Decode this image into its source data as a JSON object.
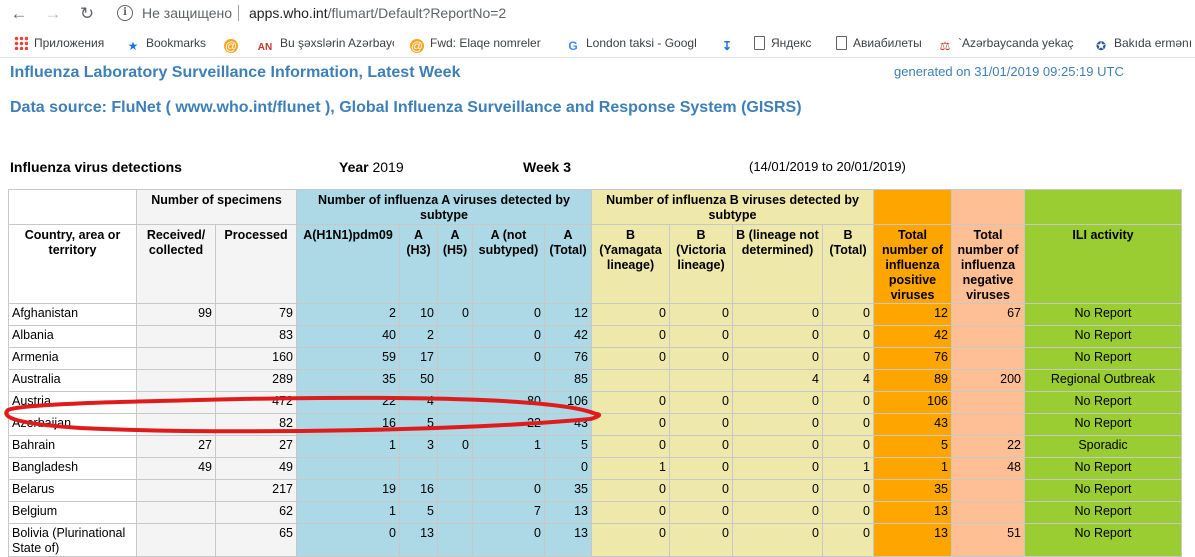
{
  "browser": {
    "security_label": "Не защищено",
    "url_host": "apps.who.int",
    "url_path": "/flumart/Default?ReportNo=2",
    "bookmarks": [
      {
        "label": "Приложения",
        "icon": "apps-grid-icon"
      },
      {
        "label": "Bookmarks",
        "icon": "star-icon"
      },
      {
        "label": "",
        "icon": "mail-at-icon"
      },
      {
        "label": "Bu şəxslərin Azərbayc",
        "icon": "an-logo-icon"
      },
      {
        "label": "Fwd: Elaqe nomreler",
        "icon": "mail-at-icon"
      },
      {
        "label": "London taksi - Googl",
        "icon": "google-icon"
      },
      {
        "label": "",
        "icon": "download-icon"
      },
      {
        "label": "Яндекс",
        "icon": "page-icon"
      },
      {
        "label": "Авиабилеты",
        "icon": "page-icon"
      },
      {
        "label": "`Azərbaycanda yekaç",
        "icon": "scales-icon"
      },
      {
        "label": "Bakıda ermənı",
        "icon": "site-icon"
      }
    ]
  },
  "report": {
    "title": "Influenza Laboratory Surveillance Information, Latest Week",
    "generated": "generated on 31/01/2019 09:25:19 UTC",
    "source": "Data source: FluNet ( www.who.int/flunet ), Global Influenza Surveillance and Response System (GISRS)",
    "section_title": "Influenza virus detections",
    "year_label": "Year",
    "year_value": "2019",
    "week_label": "Week",
    "week_value": "3",
    "date_range": "(14/01/2019 to 20/01/2019)"
  },
  "table": {
    "group_headers": {
      "specimens": "Number of specimens",
      "a_viruses": "Number of influenza A viruses detected by subtype",
      "b_viruses": "Number of influenza B viruses detected by subtype"
    },
    "columns": {
      "country": "Country, area or territory",
      "received": "Received/ collected",
      "processed": "Processed",
      "h1n1": "A(H1N1)pdm09",
      "h3": "A (H3)",
      "h5": "A (H5)",
      "a_not": "A (not subtyped)",
      "a_total": "A (Total)",
      "b_yam": "B (Yamagata lineage)",
      "b_vic": "B (Victoria lineage)",
      "b_not": "B (lineage not determined)",
      "b_total": "B (Total)",
      "total_pos": "Total number of influenza positive viruses",
      "total_neg": "Total number of influenza negative viruses",
      "ili": "ILI activity"
    },
    "rows": [
      {
        "country": "Afghanistan",
        "received": "99",
        "processed": "79",
        "h1n1": "2",
        "h3": "10",
        "h5": "0",
        "a_not": "0",
        "a_total": "12",
        "b_yam": "0",
        "b_vic": "0",
        "b_not": "0",
        "b_total": "0",
        "total_pos": "12",
        "total_neg": "67",
        "ili": "No Report"
      },
      {
        "country": "Albania",
        "received": "",
        "processed": "83",
        "h1n1": "40",
        "h3": "2",
        "h5": "",
        "a_not": "0",
        "a_total": "42",
        "b_yam": "0",
        "b_vic": "0",
        "b_not": "0",
        "b_total": "0",
        "total_pos": "42",
        "total_neg": "",
        "ili": "No Report"
      },
      {
        "country": "Armenia",
        "received": "",
        "processed": "160",
        "h1n1": "59",
        "h3": "17",
        "h5": "",
        "a_not": "0",
        "a_total": "76",
        "b_yam": "0",
        "b_vic": "0",
        "b_not": "0",
        "b_total": "0",
        "total_pos": "76",
        "total_neg": "",
        "ili": "No Report"
      },
      {
        "country": "Australia",
        "received": "",
        "processed": "289",
        "h1n1": "35",
        "h3": "50",
        "h5": "",
        "a_not": "",
        "a_total": "85",
        "b_yam": "",
        "b_vic": "",
        "b_not": "4",
        "b_total": "4",
        "total_pos": "89",
        "total_neg": "200",
        "ili": "Regional Outbreak"
      },
      {
        "country": "Austria",
        "received": "",
        "processed": "472",
        "h1n1": "22",
        "h3": "4",
        "h5": "",
        "a_not": "80",
        "a_total": "106",
        "b_yam": "0",
        "b_vic": "0",
        "b_not": "0",
        "b_total": "0",
        "total_pos": "106",
        "total_neg": "",
        "ili": "No Report"
      },
      {
        "country": "Azerbaijan",
        "received": "",
        "processed": "82",
        "h1n1": "16",
        "h3": "5",
        "h5": "",
        "a_not": "22",
        "a_total": "43",
        "b_yam": "0",
        "b_vic": "0",
        "b_not": "0",
        "b_total": "0",
        "total_pos": "43",
        "total_neg": "",
        "ili": "No Report"
      },
      {
        "country": "Bahrain",
        "received": "27",
        "processed": "27",
        "h1n1": "1",
        "h3": "3",
        "h5": "0",
        "a_not": "1",
        "a_total": "5",
        "b_yam": "0",
        "b_vic": "0",
        "b_not": "0",
        "b_total": "0",
        "total_pos": "5",
        "total_neg": "22",
        "ili": "Sporadic"
      },
      {
        "country": "Bangladesh",
        "received": "49",
        "processed": "49",
        "h1n1": "",
        "h3": "",
        "h5": "",
        "a_not": "",
        "a_total": "0",
        "b_yam": "1",
        "b_vic": "0",
        "b_not": "0",
        "b_total": "1",
        "total_pos": "1",
        "total_neg": "48",
        "ili": "No Report"
      },
      {
        "country": "Belarus",
        "received": "",
        "processed": "217",
        "h1n1": "19",
        "h3": "16",
        "h5": "",
        "a_not": "0",
        "a_total": "35",
        "b_yam": "0",
        "b_vic": "0",
        "b_not": "0",
        "b_total": "0",
        "total_pos": "35",
        "total_neg": "",
        "ili": "No Report"
      },
      {
        "country": "Belgium",
        "received": "",
        "processed": "62",
        "h1n1": "1",
        "h3": "5",
        "h5": "",
        "a_not": "7",
        "a_total": "13",
        "b_yam": "0",
        "b_vic": "0",
        "b_not": "0",
        "b_total": "0",
        "total_pos": "13",
        "total_neg": "",
        "ili": "No Report"
      },
      {
        "country": "Bolivia (Plurinational State of)",
        "received": "",
        "processed": "65",
        "h1n1": "0",
        "h3": "13",
        "h5": "",
        "a_not": "0",
        "a_total": "13",
        "b_yam": "0",
        "b_vic": "0",
        "b_not": "0",
        "b_total": "0",
        "total_pos": "13",
        "total_neg": "51",
        "ili": "No Report"
      }
    ]
  },
  "colors": {
    "title_blue": "#3e7fb8",
    "a_group": "#add8e6",
    "b_group": "#eee8aa",
    "total_positive": "#ffa500",
    "total_negative": "#ffbf94",
    "ili": "#9acd32",
    "annotation_red": "#e01b1b"
  }
}
